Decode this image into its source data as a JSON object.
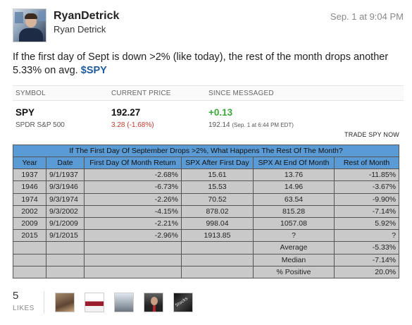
{
  "post": {
    "display_name": "RyanDetrick",
    "username": "Ryan Detrick",
    "timestamp": "Sep. 1 at 9:04 PM",
    "message_text": "If the first day of Sept is down >2% (like today), the rest of the month drops another 5.33% on avg. ",
    "cashtag": "$SPY"
  },
  "quote": {
    "headers": {
      "symbol": "SYMBOL",
      "current_price": "CURRENT PRICE",
      "since_messaged": "SINCE MESSAGED"
    },
    "symbol": "SPY",
    "name": "SPDR S&P 500",
    "price": "192.27",
    "change": "3.28 (-1.68%)",
    "since_change": "+0.13",
    "since_price": "192.14",
    "since_time": "(Sep. 1 at 6:44 PM EDT)",
    "trade_link": "TRADE SPY NOW",
    "colors": {
      "positive": "#3aa83a",
      "negative": "#c0392b"
    }
  },
  "table": {
    "title": "If The First Day Of September Drops >2%, What Happens The Rest Of The Month?",
    "columns": [
      "Year",
      "Date",
      "First Day Of Month Return",
      "SPX After First Day",
      "SPX At End Of Month",
      "Rest of Month"
    ],
    "rows": [
      [
        "1937",
        "9/1/1937",
        "-2.68%",
        "15.61",
        "13.76",
        "-11.85%"
      ],
      [
        "1946",
        "9/3/1946",
        "-6.73%",
        "15.53",
        "14.96",
        "-3.67%"
      ],
      [
        "1974",
        "9/3/1974",
        "-2.26%",
        "70.52",
        "63.54",
        "-9.90%"
      ],
      [
        "2002",
        "9/3/2002",
        "-4.15%",
        "878.02",
        "815.28",
        "-7.14%"
      ],
      [
        "2009",
        "9/1/2009",
        "-2.21%",
        "998.04",
        "1057.08",
        "5.92%"
      ],
      [
        "2015",
        "9/1/2015",
        "-2.96%",
        "1913.85",
        "?",
        "?"
      ]
    ],
    "summary": [
      {
        "label": "Average",
        "value": "-5.33%"
      },
      {
        "label": "Median",
        "value": "-7.14%"
      },
      {
        "label": "% Positive",
        "value": "20.0%"
      }
    ],
    "colors": {
      "header_bg": "#5b9bd5",
      "cell_bg": "#c9c9c9"
    }
  },
  "likes": {
    "count": "5",
    "label": "LIKES",
    "avatars": [
      "liker-avatar",
      "liker-avatar",
      "liker-avatar",
      "liker-avatar",
      "liker-avatar"
    ]
  }
}
